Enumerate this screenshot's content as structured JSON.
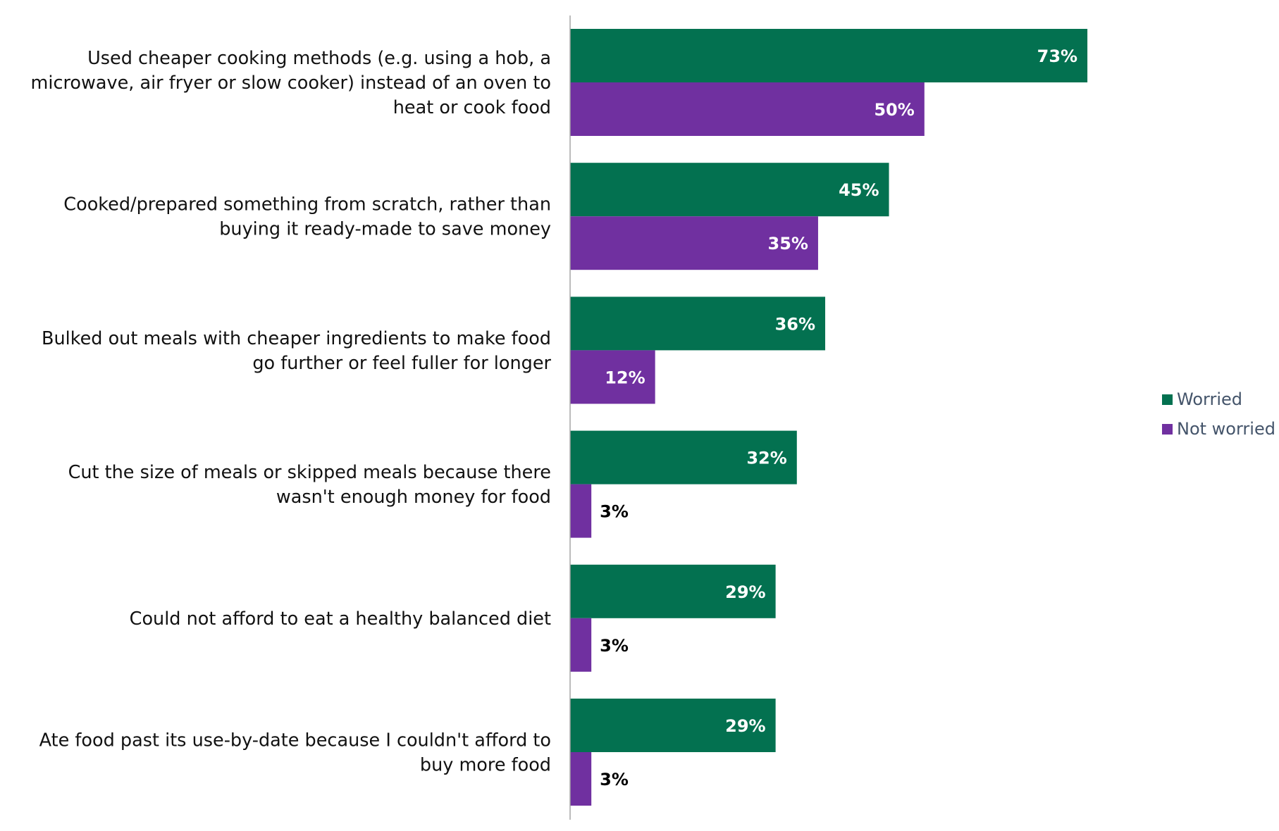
{
  "chart_data": {
    "type": "bar",
    "orientation": "horizontal",
    "title": "",
    "xlabel": "",
    "ylabel": "",
    "xlim": [
      0,
      100
    ],
    "grid": false,
    "legend_position": "right",
    "categories": [
      [
        "Used cheaper cooking methods (e.g. using a hob, a",
        "microwave, air fryer or slow cooker) instead of an oven to",
        "heat or cook food"
      ],
      [
        "Cooked/prepared something from scratch, rather than",
        "buying it ready-made to save money"
      ],
      [
        "Bulked out meals with cheaper ingredients to make food",
        "go further or feel fuller for longer"
      ],
      [
        "Cut the size of meals or skipped meals because there",
        "wasn't enough money for food"
      ],
      [
        "Could not afford to eat a healthy balanced diet"
      ],
      [
        "Ate food past its use-by-date because I couldn't afford to",
        "buy more food"
      ]
    ],
    "series": [
      {
        "name": "Worried",
        "color": "#037150",
        "values": [
          73,
          45,
          36,
          32,
          29,
          29
        ],
        "labels": [
          "73%",
          "45%",
          "36%",
          "32%",
          "29%",
          "29%"
        ]
      },
      {
        "name": "Not worried",
        "color": "#7030a0",
        "values": [
          50,
          35,
          12,
          3,
          3,
          3
        ],
        "labels": [
          "50%",
          "35%",
          "12%",
          "3%",
          "3%",
          "3%"
        ]
      }
    ]
  }
}
